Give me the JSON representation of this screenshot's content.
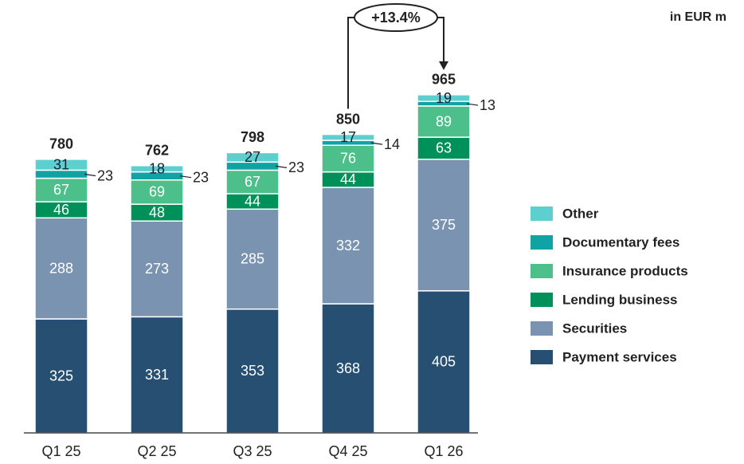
{
  "chart_data": {
    "type": "bar",
    "stacked": true,
    "unit_label": "in EUR m",
    "annotation": "+13.4%",
    "categories": [
      "Q1 25",
      "Q2 25",
      "Q3 25",
      "Q4 25",
      "Q1 26"
    ],
    "totals": [
      780,
      762,
      798,
      850,
      965
    ],
    "series": [
      {
        "name": "Payment services",
        "color": "#264f72",
        "values": [
          325,
          331,
          353,
          368,
          405
        ]
      },
      {
        "name": "Securities",
        "color": "#7a93b0",
        "values": [
          288,
          273,
          285,
          332,
          375
        ]
      },
      {
        "name": "Lending business",
        "color": "#00905a",
        "values": [
          46,
          48,
          44,
          44,
          63
        ]
      },
      {
        "name": "Insurance products",
        "color": "#4dbf8a",
        "values": [
          67,
          69,
          67,
          76,
          89
        ]
      },
      {
        "name": "Documentary fees",
        "color": "#0fa3a3",
        "values": [
          23,
          23,
          23,
          14,
          13
        ]
      },
      {
        "name": "Other",
        "color": "#5ecfcf",
        "values": [
          31,
          18,
          27,
          17,
          19
        ]
      }
    ],
    "ylim": [
      0,
      1000
    ]
  }
}
